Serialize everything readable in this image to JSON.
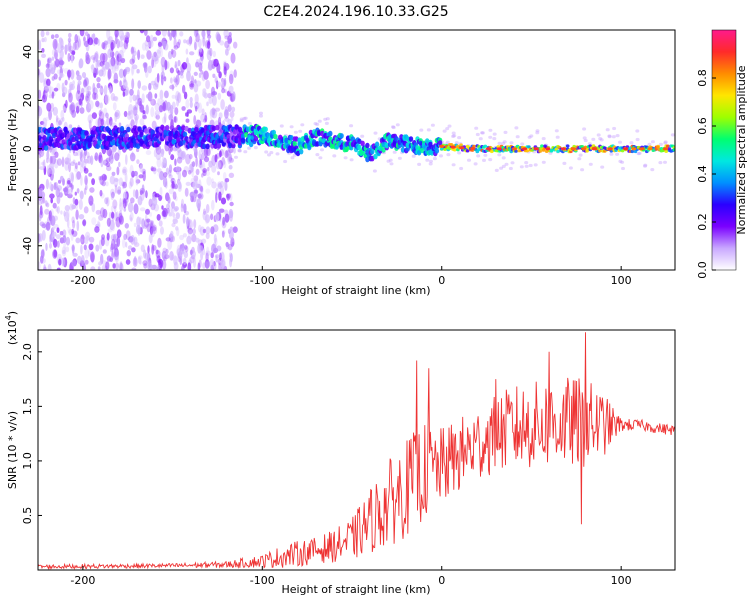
{
  "title": "C2E4.2024.196.10.33.G25",
  "chart_data": [
    {
      "type": "heatmap",
      "xlabel": "Height of straight line (km)",
      "ylabel": "Frequency (Hz)",
      "xlim": [
        -225,
        130
      ],
      "ylim": [
        -50,
        49
      ],
      "xticks": [
        -200,
        -100,
        0,
        100
      ],
      "yticks": [
        -40,
        -20,
        0,
        20,
        40
      ],
      "grid": false,
      "colorbar": {
        "label": "Normalized spectral amplitude",
        "range": [
          0.0,
          1.0
        ],
        "ticks": [
          "0.0",
          "0.2",
          "0.4",
          "0.6",
          "0.8"
        ],
        "tick_values": [
          0.0,
          0.2,
          0.4,
          0.6,
          0.8
        ],
        "colormap": [
          "#ffffff",
          "#c9a8ff",
          "#7a00ff",
          "#2a00ff",
          "#0090ff",
          "#00e8e0",
          "#00ff70",
          "#9eff00",
          "#ffe600",
          "#ff8c00",
          "#ff2a2a",
          "#ff1a8c"
        ]
      },
      "ridge": {
        "x": [
          -225,
          -150,
          -110,
          -100,
          -90,
          -80,
          -70,
          -60,
          -50,
          -40,
          -30,
          -20,
          -10,
          0,
          20,
          60,
          100,
          130
        ],
        "y": [
          4,
          5,
          5,
          6,
          3,
          1,
          5,
          3,
          2,
          -2,
          3,
          2,
          1,
          1,
          0,
          0,
          0,
          0
        ]
      }
    },
    {
      "type": "line",
      "xlabel": "Height of straight line (km)",
      "ylabel": "SNR (10 * v/v)",
      "scale_label": "(x10",
      "scale_exp": "4",
      "scale_close": ")",
      "xlim": [
        -225,
        130
      ],
      "ylim": [
        0,
        2.2
      ],
      "xticks": [
        -200,
        -100,
        0,
        100
      ],
      "yticks": [
        "0.5",
        "1.0",
        "1.5",
        "2.0"
      ],
      "ytick_values": [
        0.5,
        1.0,
        1.5,
        2.0
      ],
      "grid": false,
      "series": [
        {
          "color": "#ee3333",
          "envelope": {
            "x": [
              -225,
              -150,
              -120,
              -100,
              -90,
              -80,
              -70,
              -60,
              -50,
              -40,
              -30,
              -20,
              -10,
              0,
              10,
              20,
              30,
              40,
              50,
              60,
              70,
              80,
              90,
              100,
              110,
              120,
              130
            ],
            "base": [
              0.03,
              0.04,
              0.05,
              0.08,
              0.12,
              0.15,
              0.18,
              0.22,
              0.28,
              0.45,
              0.6,
              0.75,
              0.9,
              0.95,
              1.05,
              1.15,
              1.25,
              1.3,
              1.32,
              1.35,
              1.35,
              1.35,
              1.33,
              1.33,
              1.33,
              1.3,
              1.28
            ],
            "spread": [
              0.02,
              0.02,
              0.03,
              0.06,
              0.1,
              0.12,
              0.12,
              0.15,
              0.2,
              0.3,
              0.4,
              0.45,
              0.45,
              0.35,
              0.35,
              0.35,
              0.35,
              0.4,
              0.4,
              0.42,
              0.42,
              0.42,
              0.3,
              0.06,
              0.05,
              0.05,
              0.05
            ]
          },
          "spikes": [
            {
              "x": -14,
              "y": 1.92
            },
            {
              "x": -7,
              "y": 1.85
            },
            {
              "x": 30,
              "y": 1.75
            },
            {
              "x": 60,
              "y": 2.0
            },
            {
              "x": 80,
              "y": 2.18
            },
            {
              "x": 78,
              "y": 0.42
            }
          ]
        }
      ]
    }
  ]
}
